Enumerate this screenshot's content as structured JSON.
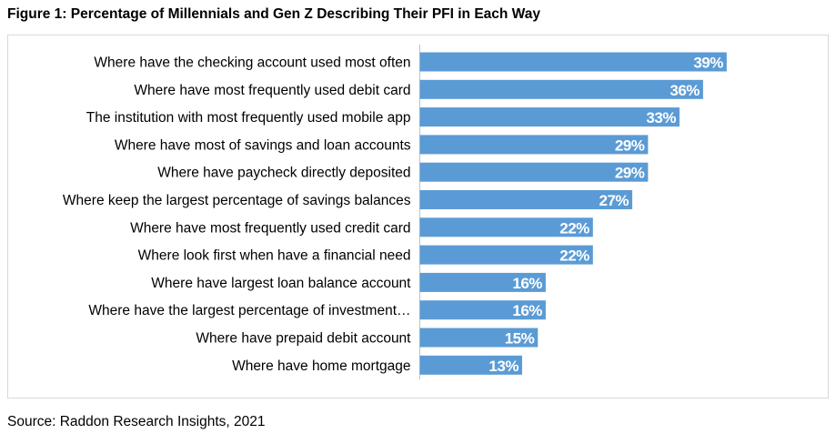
{
  "title": "Figure 1: Percentage of Millennials and Gen Z Describing Their PFI in Each Way",
  "source": "Source: Raddon Research Insights, 2021",
  "chart_data": {
    "type": "bar",
    "orientation": "horizontal",
    "categories": [
      "Where have the checking account used most often",
      "Where have most frequently used debit card",
      "The institution with most frequently used mobile app",
      "Where have most of savings and loan accounts",
      "Where have paycheck directly deposited",
      "Where keep the largest percentage of savings balances",
      "Where have most frequently used credit card",
      "Where look first when have a financial need",
      "Where have largest loan balance account",
      "Where have the largest percentage of investment…",
      "Where have prepaid debit account",
      "Where have home mortgage"
    ],
    "values": [
      39,
      36,
      33,
      29,
      29,
      27,
      22,
      22,
      16,
      16,
      15,
      13
    ],
    "value_labels": [
      "39%",
      "36%",
      "33%",
      "29%",
      "29%",
      "27%",
      "22%",
      "22%",
      "16%",
      "16%",
      "15%",
      "13%"
    ],
    "xlim": [
      0,
      50
    ],
    "unit": "%",
    "bar_color": "#5b9bd5",
    "grid": false,
    "legend": "none"
  }
}
